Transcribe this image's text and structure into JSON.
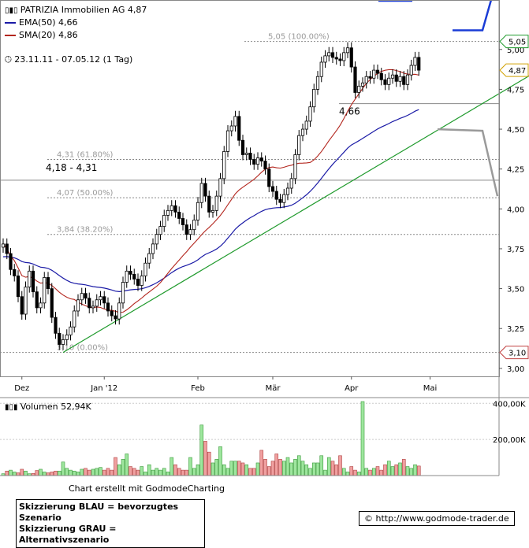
{
  "header": {
    "title": "PATRIZIA Immobilien AG 4,87",
    "ema_label": "EMA(50) 4,66",
    "sma_label": "SMA(20) 4,86",
    "period": "23.11.11 - 07.05.12 (1 Tag)",
    "volume_label": "Volumen 52,94K"
  },
  "colors": {
    "ema": "#1a1aa6",
    "sma": "#b3261e",
    "trendline": "#1f9a2c",
    "blue_scenario": "#1a3cd6",
    "gray_scenario": "#9a9a9a",
    "candle": "#000000",
    "volume_up": "#9ee69e",
    "volume_down": "#f0a0a0"
  },
  "annotations": {
    "fib_100": "5,05 (100.00%)",
    "fib_618": "4,31 (61.80%)",
    "fib_50": "4,07 (50.00%)",
    "fib_382": "3,84 (38.20%)",
    "fib_0": "3,10 (0.00%)",
    "zone": "4,18 - 4,31",
    "ema_value": "4,66"
  },
  "price_tags": {
    "high": "5,05",
    "last": "4,87",
    "low": "3,10"
  },
  "footer": {
    "credit": "Chart erstellt mit GodmodeCharting",
    "note_blue": "Skizzierung BLAU = bevorzugtes Szenario",
    "note_gray": "Skizzierung GRAU = Alternativszenario",
    "url": "© http://www.godmode-trader.de"
  },
  "chart_data": {
    "type": "candlestick",
    "title": "PATRIZIA Immobilien AG 4,87",
    "y_axis": {
      "ticks": [
        "5,00",
        "4,75",
        "4,50",
        "4,25",
        "4,00",
        "3,75",
        "3,50",
        "3,25",
        "3,00"
      ],
      "tick_values": [
        5.0,
        4.75,
        4.5,
        4.25,
        4.0,
        3.75,
        3.5,
        3.25,
        3.0
      ],
      "range": [
        2.95,
        5.31
      ]
    },
    "volume_axis": {
      "ticks": [
        "400,00K",
        "200,00K"
      ],
      "tick_values": [
        400000,
        200000
      ],
      "range": [
        0,
        410000
      ]
    },
    "x_axis": {
      "labels": [
        "Dez",
        "Jan '12",
        "Feb",
        "Mär",
        "Apr",
        "Mai"
      ],
      "label_index": [
        5,
        27,
        52,
        72,
        93,
        114
      ]
    },
    "fibonacci": [
      {
        "label": "5,05 (100.00%)",
        "value": 5.05
      },
      {
        "label": "4,31 (61.80%)",
        "value": 4.31
      },
      {
        "label": "4,07 (50.00%)",
        "value": 4.07
      },
      {
        "label": "3,84 (38.20%)",
        "value": 3.84
      },
      {
        "label": "3,10 (0.00%)",
        "value": 3.1
      }
    ],
    "horizontal_lines": [
      4.66,
      4.18
    ],
    "trendline": {
      "from": [
        16,
        3.1
      ],
      "to": [
        143,
        4.87
      ]
    },
    "blue_scenario": [
      [
        120,
        5.12
      ],
      [
        128,
        5.12
      ],
      [
        132,
        5.45
      ]
    ],
    "gray_scenario": [
      [
        116,
        4.5
      ],
      [
        128,
        4.49
      ],
      [
        132,
        4.08
      ]
    ],
    "closes": [
      3.78,
      3.72,
      3.62,
      3.58,
      3.45,
      3.34,
      3.51,
      3.61,
      3.48,
      3.38,
      3.41,
      3.57,
      3.5,
      3.32,
      3.22,
      3.15,
      3.18,
      3.21,
      3.26,
      3.36,
      3.43,
      3.47,
      3.44,
      3.38,
      3.39,
      3.43,
      3.45,
      3.41,
      3.36,
      3.33,
      3.31,
      3.41,
      3.54,
      3.61,
      3.59,
      3.56,
      3.52,
      3.58,
      3.66,
      3.72,
      3.78,
      3.84,
      3.89,
      3.96,
      3.99,
      4.02,
      3.98,
      3.94,
      3.9,
      3.84,
      3.87,
      3.93,
      4.04,
      4.16,
      4.08,
      3.98,
      3.99,
      4.08,
      4.19,
      4.36,
      4.49,
      4.52,
      4.58,
      4.43,
      4.34,
      4.35,
      4.31,
      4.28,
      4.32,
      4.3,
      4.25,
      4.14,
      4.11,
      4.06,
      4.04,
      4.09,
      4.13,
      4.19,
      4.34,
      4.46,
      4.5,
      4.55,
      4.64,
      4.75,
      4.83,
      4.92,
      4.96,
      4.98,
      4.95,
      4.94,
      4.93,
      4.98,
      5.01,
      4.89,
      4.73,
      4.77,
      4.79,
      4.83,
      4.82,
      4.87,
      4.85,
      4.81,
      4.78,
      4.82,
      4.84,
      4.8,
      4.83,
      4.78,
      4.84,
      4.9,
      4.95,
      4.87
    ],
    "volumes": [
      10000,
      25000,
      30000,
      20000,
      15000,
      35000,
      25000,
      10000,
      12000,
      28000,
      35000,
      20000,
      15000,
      20000,
      25000,
      25000,
      75000,
      40000,
      30000,
      25000,
      20000,
      35000,
      40000,
      30000,
      35000,
      40000,
      45000,
      30000,
      40000,
      30000,
      100000,
      60000,
      90000,
      120000,
      50000,
      40000,
      30000,
      50000,
      20000,
      60000,
      30000,
      40000,
      30000,
      40000,
      20000,
      100000,
      60000,
      40000,
      30000,
      30000,
      100000,
      40000,
      60000,
      280000,
      190000,
      130000,
      70000,
      90000,
      160000,
      60000,
      40000,
      80000,
      80000,
      80000,
      70000,
      60000,
      40000,
      40000,
      70000,
      140000,
      90000,
      50000,
      80000,
      120000,
      90000,
      80000,
      100000,
      70000,
      90000,
      110000,
      80000,
      60000,
      40000,
      70000,
      70000,
      110000,
      30000,
      100000,
      80000,
      60000,
      110000,
      40000,
      20000,
      50000,
      30000,
      20000,
      410000,
      40000,
      30000,
      40000,
      50000,
      30000,
      60000,
      80000,
      50000,
      60000,
      70000,
      90000,
      50000,
      40000,
      60000,
      52940
    ],
    "vol_up": [
      1,
      0,
      1,
      1,
      0,
      0,
      1,
      1,
      0,
      0,
      1,
      1,
      0,
      0,
      0,
      1,
      1,
      1,
      1,
      1,
      1,
      1,
      0,
      0,
      1,
      1,
      1,
      0,
      0,
      0,
      0,
      1,
      1,
      1,
      0,
      0,
      0,
      1,
      1,
      1,
      1,
      1,
      1,
      1,
      1,
      1,
      0,
      0,
      0,
      0,
      1,
      1,
      1,
      1,
      0,
      0,
      1,
      1,
      1,
      1,
      1,
      1,
      1,
      0,
      0,
      1,
      0,
      0,
      1,
      0,
      0,
      0,
      0,
      0,
      0,
      1,
      1,
      1,
      1,
      1,
      1,
      1,
      1,
      1,
      1,
      1,
      1,
      1,
      0,
      0,
      0,
      1,
      1,
      0,
      0,
      1,
      1,
      1,
      0,
      1,
      0,
      0,
      0,
      1,
      1,
      0,
      1,
      0,
      1,
      1,
      1,
      0
    ]
  }
}
